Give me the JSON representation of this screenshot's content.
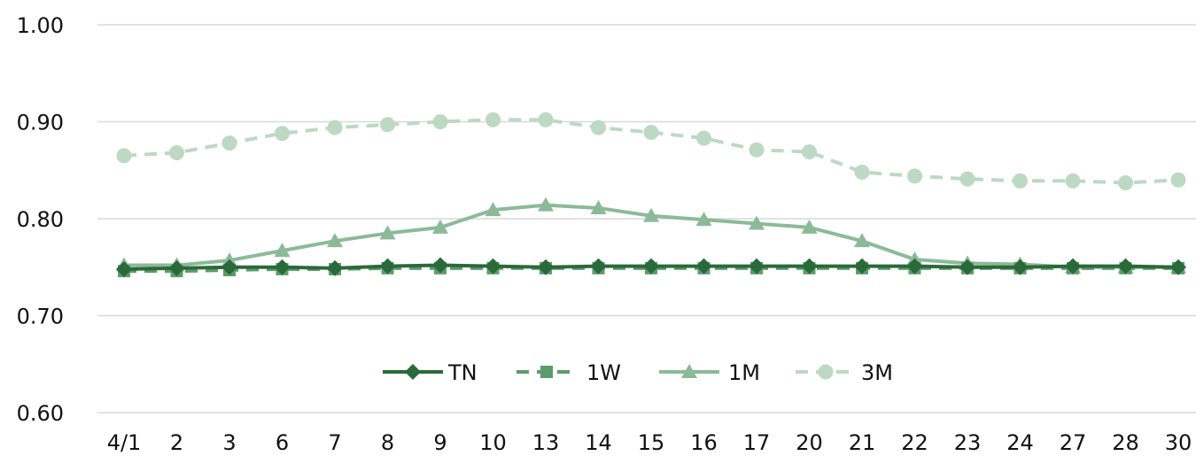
{
  "chart_data": {
    "type": "line",
    "title": "",
    "xlabel": "",
    "ylabel": "",
    "categories": [
      "4/1",
      "2",
      "3",
      "6",
      "7",
      "8",
      "9",
      "10",
      "13",
      "14",
      "15",
      "16",
      "17",
      "20",
      "21",
      "22",
      "23",
      "24",
      "27",
      "28",
      "30"
    ],
    "ylim": [
      0.6,
      1.0
    ],
    "yticks": [
      "1.00",
      "0.90",
      "0.80",
      "0.70",
      "0.60"
    ],
    "grid": true,
    "legend_position": "inside-bottom-center",
    "series": [
      {
        "name": "TN",
        "marker": "diamond",
        "dash": "solid",
        "color": "#2a6a3a",
        "values": [
          0.748,
          0.749,
          0.75,
          0.75,
          0.749,
          0.751,
          0.752,
          0.751,
          0.75,
          0.751,
          0.751,
          0.751,
          0.751,
          0.751,
          0.751,
          0.751,
          0.75,
          0.75,
          0.751,
          0.751,
          0.75
        ]
      },
      {
        "name": "1W",
        "marker": "square",
        "dash": "dashed",
        "color": "#5c9c6c",
        "values": [
          0.746,
          0.746,
          0.747,
          0.748,
          0.748,
          0.749,
          0.749,
          0.749,
          0.749,
          0.749,
          0.749,
          0.749,
          0.749,
          0.749,
          0.749,
          0.749,
          0.749,
          0.749,
          0.749,
          0.749,
          0.749
        ]
      },
      {
        "name": "1M",
        "marker": "triangle",
        "dash": "solid",
        "color": "#8cba98",
        "values": [
          0.752,
          0.752,
          0.757,
          0.767,
          0.777,
          0.785,
          0.791,
          0.809,
          0.814,
          0.811,
          0.803,
          0.799,
          0.795,
          0.791,
          0.777,
          0.758,
          0.754,
          0.753,
          0.75,
          0.75,
          0.75
        ]
      },
      {
        "name": "3M",
        "marker": "circle",
        "dash": "dashed",
        "color": "#bdd8c3",
        "values": [
          0.865,
          0.868,
          0.878,
          0.888,
          0.894,
          0.897,
          0.9,
          0.902,
          0.902,
          0.894,
          0.889,
          0.883,
          0.871,
          0.869,
          0.848,
          0.844,
          0.841,
          0.839,
          0.839,
          0.837,
          0.84
        ]
      }
    ]
  }
}
